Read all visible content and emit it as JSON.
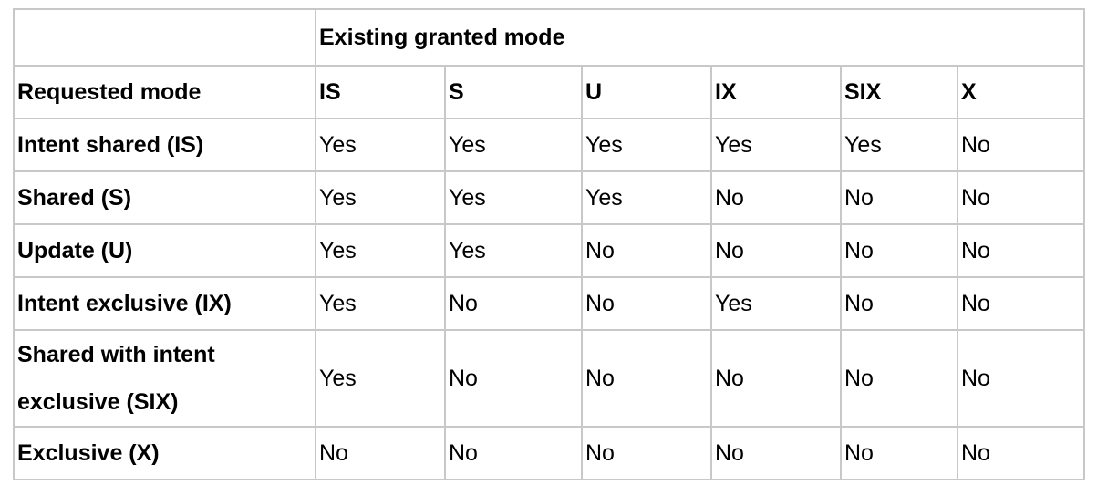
{
  "header": {
    "group_title": "Existing granted mode",
    "requested_mode_label": "Requested mode",
    "columns": [
      "IS",
      "S",
      "U",
      "IX",
      "SIX",
      "X"
    ]
  },
  "rows": [
    {
      "label": "Intent shared (IS)",
      "values": [
        "Yes",
        "Yes",
        "Yes",
        "Yes",
        "Yes",
        "No"
      ]
    },
    {
      "label": "Shared (S)",
      "values": [
        "Yes",
        "Yes",
        "Yes",
        "No",
        "No",
        "No"
      ]
    },
    {
      "label": "Update (U)",
      "values": [
        "Yes",
        "Yes",
        "No",
        "No",
        "No",
        "No"
      ]
    },
    {
      "label": "Intent exclusive (IX)",
      "values": [
        "Yes",
        "No",
        "No",
        "Yes",
        "No",
        "No"
      ]
    },
    {
      "label": "Shared with intent exclusive (SIX)",
      "values": [
        "Yes",
        "No",
        "No",
        "No",
        "No",
        "No"
      ]
    },
    {
      "label": "Exclusive (X)",
      "values": [
        "No",
        "No",
        "No",
        "No",
        "No",
        "No"
      ]
    }
  ]
}
